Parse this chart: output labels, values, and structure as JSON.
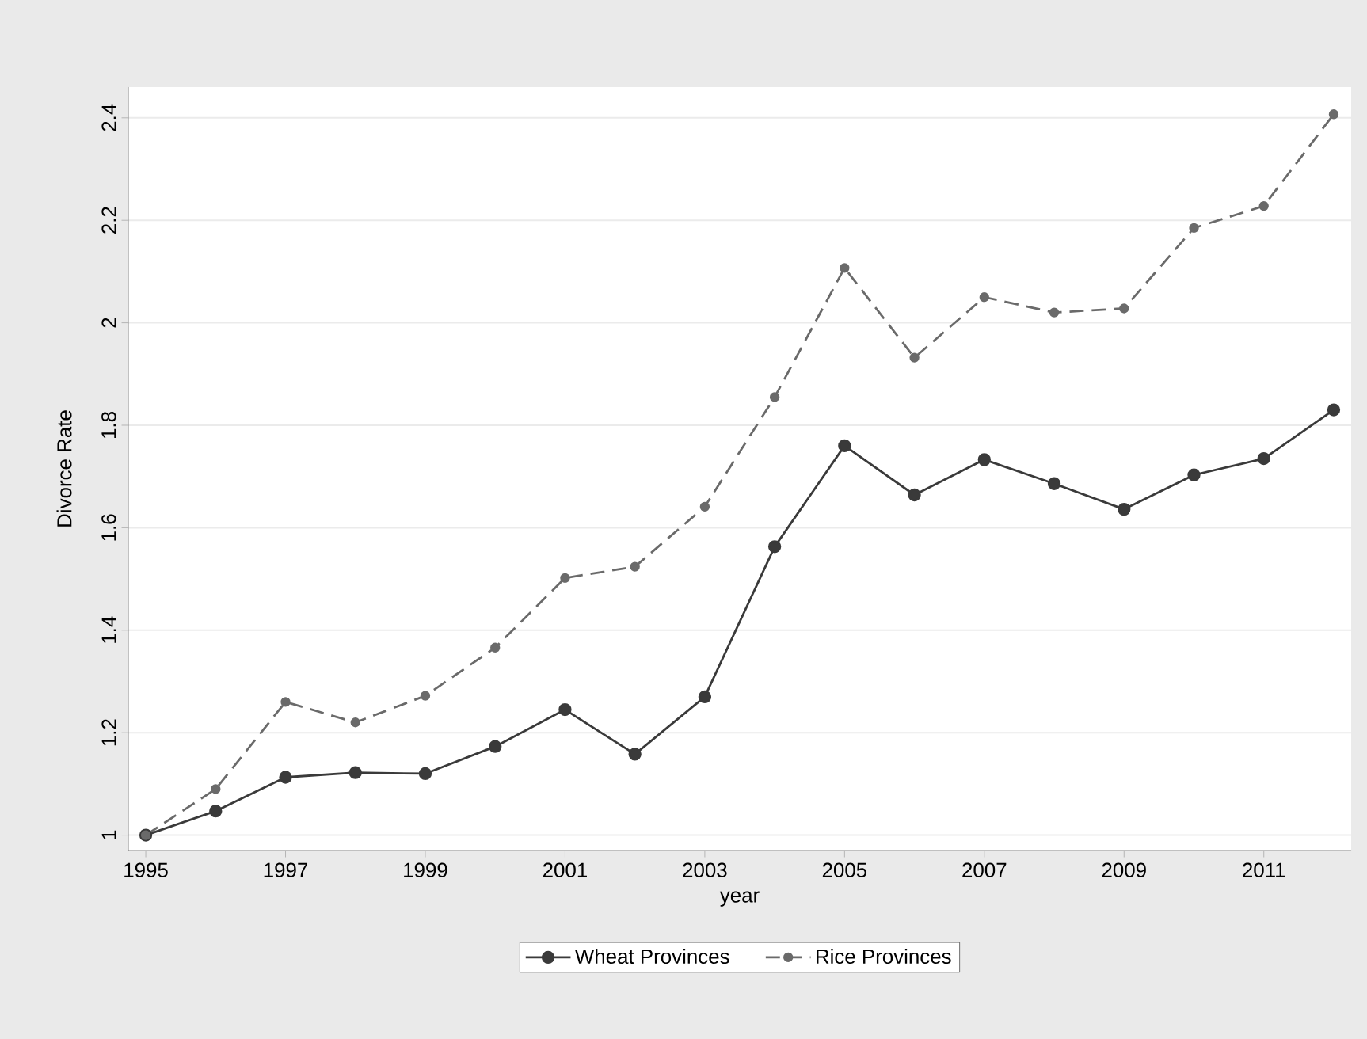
{
  "chart_data": {
    "type": "line",
    "xlabel": "year",
    "ylabel": "Divorce Rate",
    "x": [
      1995,
      1996,
      1997,
      1998,
      1999,
      2000,
      2001,
      2002,
      2003,
      2004,
      2005,
      2006,
      2007,
      2008,
      2009,
      2010,
      2011,
      2012
    ],
    "series": [
      {
        "name": "Wheat Provinces",
        "color": "#3a3a3a",
        "line_style": "solid",
        "values": [
          1.0,
          1.047,
          1.113,
          1.122,
          1.12,
          1.173,
          1.245,
          1.158,
          1.27,
          1.563,
          1.76,
          1.664,
          1.733,
          1.686,
          1.636,
          1.703,
          1.735,
          1.83
        ]
      },
      {
        "name": "Rice Provinces",
        "color": "#6a6a6a",
        "line_style": "dashed",
        "values": [
          1.0,
          1.09,
          1.26,
          1.22,
          1.272,
          1.366,
          1.502,
          1.524,
          1.641,
          1.855,
          2.107,
          1.932,
          2.05,
          2.02,
          2.028,
          2.185,
          2.228,
          2.407
        ]
      }
    ],
    "xlim": [
      1994.75,
      2012.25
    ],
    "xticks": [
      1995,
      1997,
      1999,
      2001,
      2003,
      2005,
      2007,
      2009,
      2011
    ],
    "ylim": [
      0.97,
      2.46
    ],
    "yticks": [
      1,
      1.2,
      1.4,
      1.6,
      1.8,
      2,
      2.2,
      2.4
    ],
    "grid": "y",
    "legend": "bottom",
    "marker": "circle"
  }
}
